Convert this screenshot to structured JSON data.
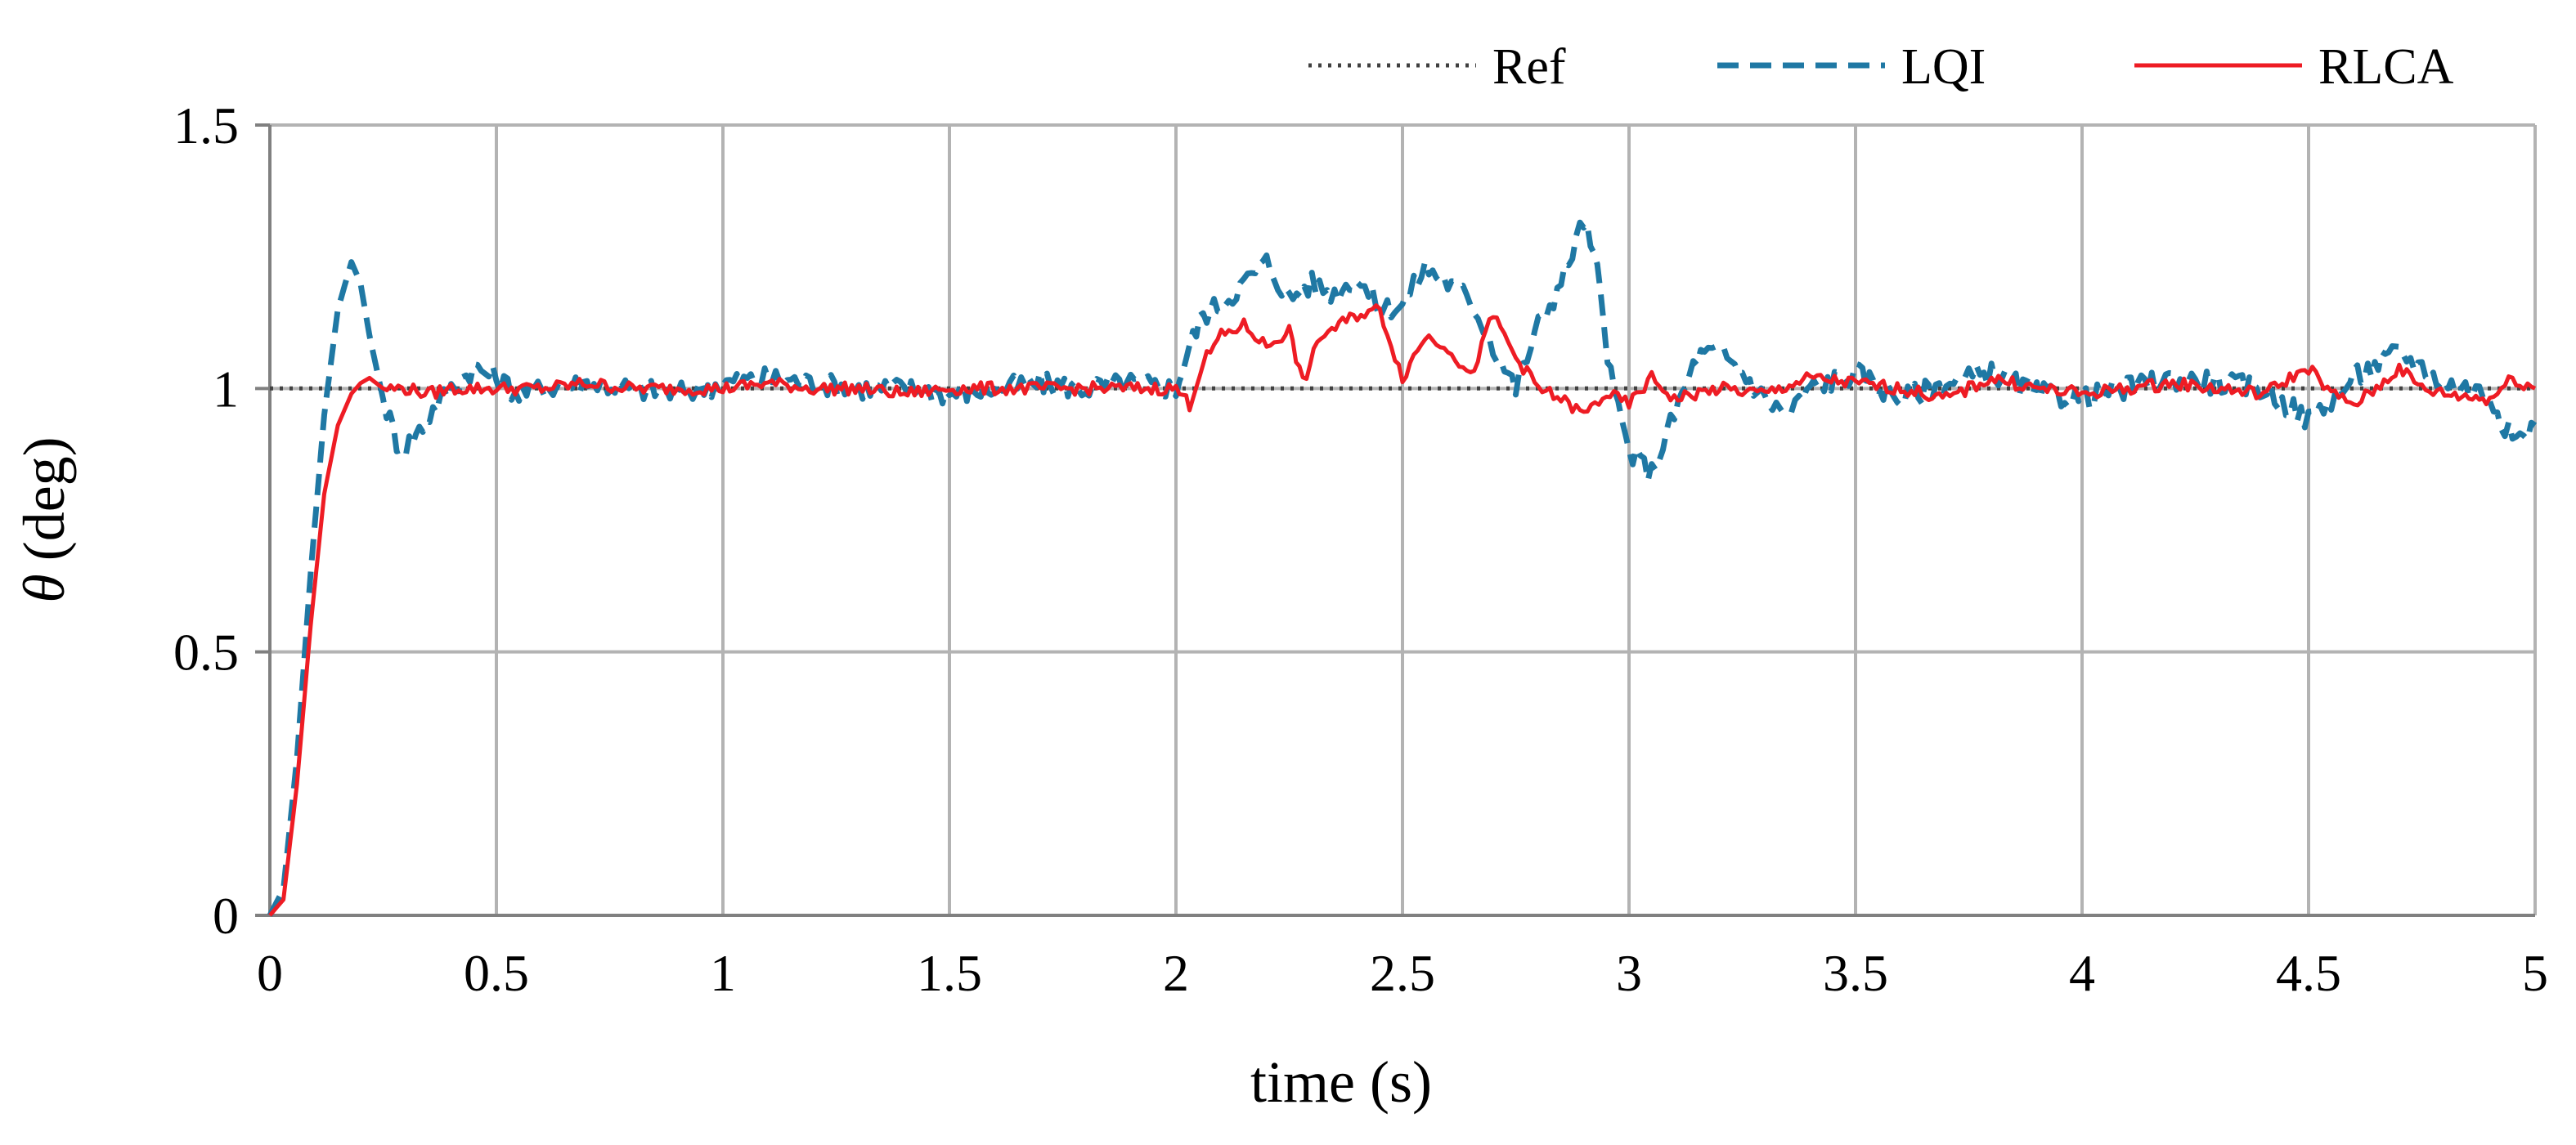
{
  "chart_data": {
    "type": "line",
    "title": "",
    "xlabel": "time (s)",
    "ylabel_symbol": "θ",
    "ylabel_unit": "(deg)",
    "xlim": [
      0,
      5
    ],
    "ylim": [
      0,
      1.5
    ],
    "x_ticks": [
      0,
      0.5,
      1,
      1.5,
      2,
      2.5,
      3,
      3.5,
      4,
      4.5,
      5
    ],
    "x_tick_labels": [
      "0",
      "0.5",
      "1",
      "1.5",
      "2",
      "2.5",
      "3",
      "3.5",
      "4",
      "4.5",
      "5"
    ],
    "y_ticks": [
      0,
      0.5,
      1,
      1.5
    ],
    "y_tick_labels": [
      "0",
      "0.5",
      "1",
      "1.5"
    ],
    "grid": true,
    "legend_position": "top-right",
    "series": [
      {
        "name": "Ref",
        "color": "#404040",
        "style": "dotted",
        "x": [
          0,
          5
        ],
        "y": [
          1,
          1
        ]
      },
      {
        "name": "LQI",
        "color": "#1f78a4",
        "style": "dashed",
        "x": [
          0,
          0.03,
          0.06,
          0.09,
          0.12,
          0.15,
          0.18,
          0.2,
          0.22,
          0.25,
          0.28,
          0.3,
          0.33,
          0.36,
          0.4,
          0.45,
          0.5,
          0.55,
          0.6,
          0.7,
          0.8,
          0.9,
          1.0,
          1.1,
          1.2,
          1.3,
          1.4,
          1.5,
          1.6,
          1.7,
          1.8,
          1.9,
          2.0,
          2.03,
          2.06,
          2.1,
          2.15,
          2.2,
          2.25,
          2.3,
          2.35,
          2.4,
          2.45,
          2.5,
          2.55,
          2.6,
          2.65,
          2.7,
          2.75,
          2.8,
          2.85,
          2.9,
          2.93,
          2.96,
          3.0,
          3.05,
          3.1,
          3.15,
          3.2,
          3.25,
          3.3,
          3.35,
          3.4,
          3.5,
          3.6,
          3.7,
          3.8,
          3.9,
          4.0,
          4.1,
          4.2,
          4.3,
          4.4,
          4.5,
          4.6,
          4.7,
          4.8,
          4.9,
          4.95,
          5.0
        ],
        "y": [
          0,
          0.05,
          0.3,
          0.65,
          0.95,
          1.15,
          1.24,
          1.2,
          1.1,
          0.98,
          0.9,
          0.89,
          0.92,
          0.96,
          1.0,
          1.04,
          1.02,
          0.99,
          1.0,
          1.01,
          1.0,
          0.99,
          1.01,
          1.02,
          1.01,
          1.0,
          1.0,
          0.99,
          1.0,
          1.01,
          1.0,
          1.01,
          1.0,
          1.08,
          1.14,
          1.16,
          1.2,
          1.24,
          1.17,
          1.2,
          1.18,
          1.21,
          1.15,
          1.16,
          1.23,
          1.2,
          1.17,
          1.08,
          1.0,
          1.12,
          1.2,
          1.32,
          1.22,
          1.02,
          0.88,
          0.84,
          0.95,
          1.06,
          1.07,
          1.03,
          0.98,
          0.95,
          1.0,
          1.03,
          0.98,
          1.01,
          1.03,
          0.99,
          0.98,
          1.0,
          1.02,
          1.01,
          1.0,
          0.94,
          1.02,
          1.07,
          1.01,
          0.99,
          0.9,
          0.93
        ]
      },
      {
        "name": "RLCA",
        "color": "#ee1c24",
        "style": "solid",
        "x": [
          0,
          0.03,
          0.06,
          0.09,
          0.12,
          0.15,
          0.18,
          0.2,
          0.22,
          0.25,
          0.3,
          0.35,
          0.4,
          0.5,
          0.6,
          0.7,
          0.8,
          0.9,
          1.0,
          1.1,
          1.2,
          1.3,
          1.4,
          1.5,
          1.6,
          1.7,
          1.8,
          1.9,
          2.0,
          2.03,
          2.06,
          2.1,
          2.15,
          2.2,
          2.25,
          2.28,
          2.32,
          2.36,
          2.4,
          2.45,
          2.5,
          2.55,
          2.6,
          2.65,
          2.7,
          2.75,
          2.8,
          2.85,
          2.9,
          2.95,
          3.0,
          3.05,
          3.1,
          3.2,
          3.3,
          3.4,
          3.5,
          3.6,
          3.7,
          3.8,
          3.9,
          4.0,
          4.1,
          4.2,
          4.3,
          4.4,
          4.5,
          4.55,
          4.6,
          4.65,
          4.7,
          4.75,
          4.8,
          4.9,
          4.95,
          5.0
        ],
        "y": [
          0,
          0.03,
          0.25,
          0.55,
          0.8,
          0.93,
          0.99,
          1.01,
          1.02,
          1.0,
          1.0,
          0.99,
          1.0,
          1.0,
          1.0,
          1.01,
          1.0,
          1.0,
          1.0,
          1.01,
          1.0,
          1.0,
          0.99,
          1.0,
          1.0,
          1.0,
          1.0,
          1.0,
          1.0,
          0.97,
          1.05,
          1.1,
          1.12,
          1.08,
          1.11,
          1.01,
          1.1,
          1.12,
          1.14,
          1.15,
          1.02,
          1.1,
          1.08,
          1.02,
          1.14,
          1.06,
          1.0,
          0.98,
          0.95,
          0.99,
          0.97,
          1.02,
          0.98,
          1.0,
          0.99,
          1.02,
          1.01,
          1.0,
          0.98,
          1.02,
          1.0,
          0.99,
          1.0,
          1.01,
          1.0,
          0.99,
          1.04,
          0.99,
          0.97,
          1.0,
          1.04,
          1.0,
          0.99,
          0.98,
          1.02,
          1.0
        ]
      }
    ]
  }
}
